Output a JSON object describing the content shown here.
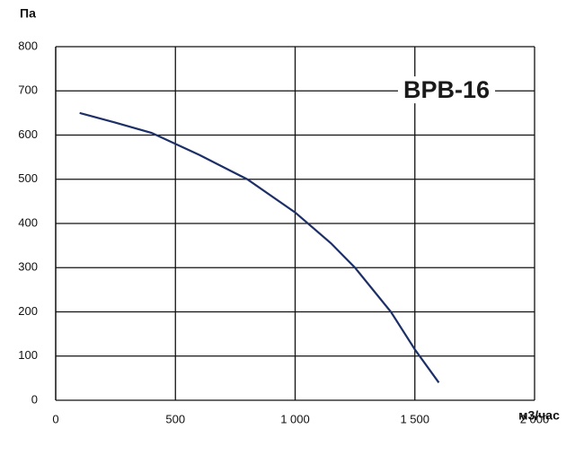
{
  "chart_data": {
    "type": "line",
    "y_label": "Па",
    "x_label": "м3/час",
    "annotation": "BPB-16",
    "x": [
      100,
      250,
      400,
      600,
      800,
      1000,
      1150,
      1250,
      1400,
      1500,
      1600
    ],
    "series": [
      {
        "color": "#1c2f66",
        "values": [
          650,
          628,
          605,
          555,
          500,
          425,
          355,
          300,
          200,
          115,
          40
        ]
      }
    ],
    "xlim": [
      0,
      2000
    ],
    "xticks": [
      0,
      500,
      {
        "value": 1000,
        "label": "1 000"
      },
      {
        "value": 1500,
        "label": "1 500"
      },
      {
        "value": 2000,
        "label": "2 000"
      }
    ],
    "ylim": [
      0,
      800
    ],
    "yticks": [
      0,
      100,
      200,
      300,
      400,
      500,
      600,
      700,
      800
    ],
    "grid": true
  }
}
